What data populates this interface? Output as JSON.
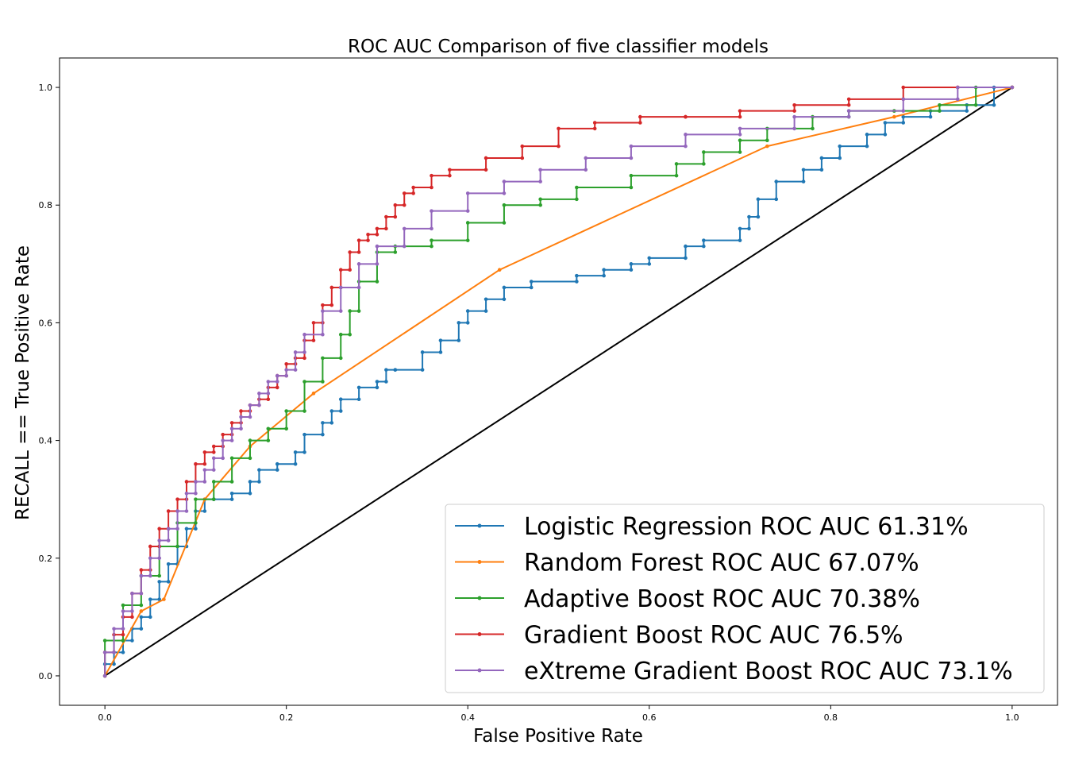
{
  "chart_data": {
    "type": "line",
    "title": "ROC AUC Comparison of five classifier models",
    "xlabel": "False Positive Rate",
    "ylabel": "RECALL == True Positive Rate",
    "xlim": [
      -0.05,
      1.05
    ],
    "ylim": [
      -0.05,
      1.05
    ],
    "x_ticks": [
      "0.0",
      "0.2",
      "0.4",
      "0.6",
      "0.8",
      "1.0"
    ],
    "y_ticks": [
      "0.0",
      "0.2",
      "0.4",
      "0.6",
      "0.8",
      "1.0"
    ],
    "grid": false,
    "legend_position": "lower-right",
    "diagonal": {
      "x": [
        0,
        1
      ],
      "y": [
        0,
        1
      ],
      "color": "#000000"
    },
    "series": [
      {
        "name": "Logistic Regression ROC AUC 61.31%",
        "color": "#1f77b4",
        "x": [
          0,
          0.01,
          0.02,
          0.03,
          0.04,
          0.05,
          0.06,
          0.07,
          0.08,
          0.09,
          0.1,
          0.11,
          0.12,
          0.14,
          0.16,
          0.17,
          0.19,
          0.21,
          0.22,
          0.24,
          0.25,
          0.26,
          0.28,
          0.3,
          0.31,
          0.32,
          0.35,
          0.37,
          0.39,
          0.4,
          0.42,
          0.44,
          0.47,
          0.52,
          0.55,
          0.58,
          0.6,
          0.64,
          0.66,
          0.7,
          0.71,
          0.72,
          0.74,
          0.77,
          0.79,
          0.81,
          0.84,
          0.86,
          0.88,
          0.91,
          0.95,
          0.98,
          1.0
        ],
        "y": [
          0,
          0.02,
          0.04,
          0.06,
          0.08,
          0.1,
          0.13,
          0.16,
          0.19,
          0.22,
          0.25,
          0.28,
          0.3,
          0.3,
          0.31,
          0.33,
          0.35,
          0.36,
          0.38,
          0.41,
          0.43,
          0.45,
          0.47,
          0.49,
          0.5,
          0.52,
          0.52,
          0.55,
          0.57,
          0.6,
          0.62,
          0.64,
          0.66,
          0.67,
          0.68,
          0.69,
          0.7,
          0.71,
          0.73,
          0.74,
          0.76,
          0.78,
          0.81,
          0.84,
          0.86,
          0.88,
          0.9,
          0.92,
          0.94,
          0.95,
          0.96,
          0.97,
          1.0
        ]
      },
      {
        "name": "Random Forest ROC AUC 67.07%",
        "color": "#ff7f0e",
        "x": [
          0,
          0.04,
          0.065,
          0.11,
          0.16,
          0.23,
          0.435,
          0.73,
          0.87,
          1.0
        ],
        "y": [
          0,
          0.11,
          0.13,
          0.3,
          0.39,
          0.48,
          0.69,
          0.9,
          0.95,
          1.0
        ],
        "marker_points": [
          0,
          1,
          2,
          3,
          4,
          5,
          6,
          7,
          8,
          9
        ]
      },
      {
        "name": "Adaptive Boost ROC AUC 70.38%",
        "color": "#2ca02c",
        "x": [
          0,
          0.02,
          0.04,
          0.06,
          0.08,
          0.1,
          0.12,
          0.14,
          0.16,
          0.18,
          0.2,
          0.22,
          0.24,
          0.26,
          0.27,
          0.28,
          0.3,
          0.32,
          0.36,
          0.4,
          0.44,
          0.48,
          0.52,
          0.58,
          0.63,
          0.66,
          0.7,
          0.73,
          0.78,
          0.82,
          0.87,
          0.92,
          0.96,
          1.0
        ],
        "y": [
          0,
          0.06,
          0.12,
          0.17,
          0.22,
          0.26,
          0.3,
          0.33,
          0.37,
          0.4,
          0.42,
          0.45,
          0.5,
          0.54,
          0.58,
          0.62,
          0.67,
          0.72,
          0.73,
          0.74,
          0.77,
          0.8,
          0.81,
          0.83,
          0.85,
          0.87,
          0.89,
          0.91,
          0.93,
          0.95,
          0.96,
          0.96,
          0.97,
          1.0
        ]
      },
      {
        "name": "Gradient Boost ROC AUC 76.5%",
        "color": "#d62728",
        "x": [
          0,
          0.01,
          0.02,
          0.03,
          0.04,
          0.05,
          0.06,
          0.07,
          0.08,
          0.09,
          0.1,
          0.11,
          0.12,
          0.13,
          0.14,
          0.15,
          0.16,
          0.17,
          0.18,
          0.19,
          0.2,
          0.21,
          0.22,
          0.23,
          0.24,
          0.25,
          0.26,
          0.27,
          0.28,
          0.29,
          0.3,
          0.31,
          0.32,
          0.33,
          0.34,
          0.36,
          0.38,
          0.42,
          0.46,
          0.5,
          0.54,
          0.59,
          0.64,
          0.7,
          0.76,
          0.82,
          0.88,
          0.94,
          1.0
        ],
        "y": [
          0,
          0.04,
          0.07,
          0.1,
          0.14,
          0.18,
          0.22,
          0.25,
          0.28,
          0.3,
          0.33,
          0.36,
          0.38,
          0.39,
          0.41,
          0.43,
          0.45,
          0.46,
          0.47,
          0.49,
          0.51,
          0.53,
          0.54,
          0.57,
          0.6,
          0.63,
          0.66,
          0.69,
          0.72,
          0.74,
          0.75,
          0.76,
          0.78,
          0.8,
          0.82,
          0.83,
          0.85,
          0.86,
          0.88,
          0.9,
          0.93,
          0.94,
          0.95,
          0.95,
          0.96,
          0.97,
          0.98,
          1.0,
          1.0
        ]
      },
      {
        "name": "eXtreme Gradient Boost ROC AUC 73.1%",
        "color": "#9467bd",
        "x": [
          0,
          0.01,
          0.02,
          0.03,
          0.04,
          0.05,
          0.06,
          0.07,
          0.08,
          0.09,
          0.1,
          0.11,
          0.12,
          0.13,
          0.14,
          0.15,
          0.16,
          0.17,
          0.18,
          0.19,
          0.2,
          0.21,
          0.22,
          0.24,
          0.26,
          0.28,
          0.3,
          0.33,
          0.36,
          0.4,
          0.44,
          0.48,
          0.53,
          0.58,
          0.64,
          0.7,
          0.76,
          0.82,
          0.88,
          0.94,
          1.0
        ],
        "y": [
          0,
          0.04,
          0.08,
          0.11,
          0.14,
          0.17,
          0.2,
          0.23,
          0.25,
          0.28,
          0.31,
          0.33,
          0.35,
          0.37,
          0.4,
          0.42,
          0.44,
          0.46,
          0.48,
          0.5,
          0.51,
          0.52,
          0.55,
          0.58,
          0.62,
          0.66,
          0.7,
          0.73,
          0.76,
          0.79,
          0.82,
          0.84,
          0.86,
          0.88,
          0.9,
          0.92,
          0.93,
          0.95,
          0.96,
          0.98,
          1.0
        ]
      }
    ]
  }
}
